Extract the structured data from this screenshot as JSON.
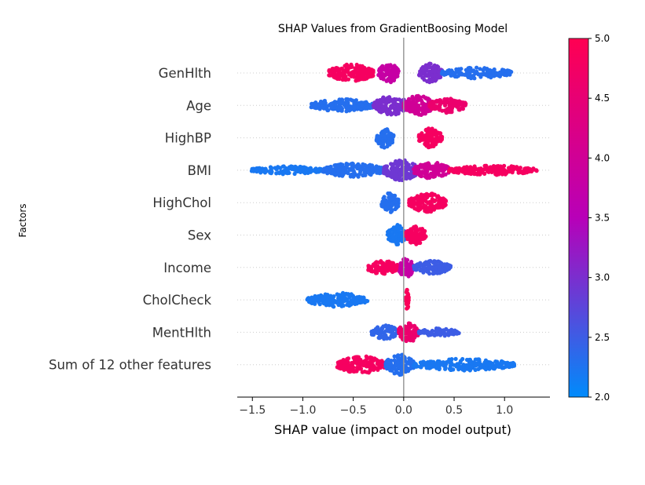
{
  "chart_data": {
    "type": "scatter",
    "subtype": "shap-beeswarm",
    "title": "SHAP Values from GradientBoosing Model",
    "xlabel": "SHAP value (impact on model output)",
    "ylabel": "Factors",
    "xlim": [
      -1.65,
      1.45
    ],
    "xticks": [
      -1.5,
      -1.0,
      -0.5,
      0.0,
      0.5,
      1.0
    ],
    "xtick_labels": [
      "−1.5",
      "−1.0",
      "−0.5",
      "0.0",
      "0.5",
      "1.0"
    ],
    "colorbar": {
      "range": [
        2.0,
        5.0
      ],
      "ticks": [
        2.0,
        2.5,
        3.0,
        3.5,
        4.0,
        4.5,
        5.0
      ],
      "tick_labels": [
        "2.0",
        "2.5",
        "3.0",
        "3.5",
        "4.0",
        "4.5",
        "5.0"
      ],
      "color_low": "#008bfb",
      "color_mid": "#b800b8",
      "color_high": "#ff0052"
    },
    "features": [
      {
        "name": "GenHlth",
        "clusters": [
          {
            "x0": -0.74,
            "x1": -0.3,
            "density": 0.85,
            "color": 4.8
          },
          {
            "x0": -0.25,
            "x1": -0.05,
            "density": 1.0,
            "color": 3.8
          },
          {
            "x0": 0.15,
            "x1": 0.38,
            "density": 0.9,
            "color": 3.0
          },
          {
            "x0": 0.38,
            "x1": 1.08,
            "density": 0.4,
            "color": 2.3
          }
        ]
      },
      {
        "name": "Age",
        "clusters": [
          {
            "x0": -0.92,
            "x1": -0.3,
            "density": 0.5,
            "color": 2.3
          },
          {
            "x0": -0.3,
            "x1": 0.05,
            "density": 0.95,
            "color": 3.0
          },
          {
            "x0": 0.0,
            "x1": 0.3,
            "density": 1.0,
            "color": 4.0
          },
          {
            "x0": 0.25,
            "x1": 0.62,
            "density": 0.65,
            "color": 4.6
          }
        ]
      },
      {
        "name": "HighBP",
        "clusters": [
          {
            "x0": -0.27,
            "x1": -0.1,
            "density": 1.0,
            "color": 2.3
          },
          {
            "x0": 0.15,
            "x1": 0.38,
            "density": 0.95,
            "color": 4.8
          }
        ]
      },
      {
        "name": "BMI",
        "clusters": [
          {
            "x0": -1.52,
            "x1": -0.8,
            "density": 0.2,
            "color": 2.2
          },
          {
            "x0": -0.8,
            "x1": -0.2,
            "density": 0.6,
            "color": 2.3
          },
          {
            "x0": -0.2,
            "x1": 0.15,
            "density": 1.0,
            "color": 2.9
          },
          {
            "x0": 0.1,
            "x1": 0.45,
            "density": 0.8,
            "color": 4.0
          },
          {
            "x0": 0.45,
            "x1": 1.32,
            "density": 0.3,
            "color": 4.8
          }
        ]
      },
      {
        "name": "HighChol",
        "clusters": [
          {
            "x0": -0.22,
            "x1": -0.05,
            "density": 1.0,
            "color": 2.3
          },
          {
            "x0": 0.05,
            "x1": 0.42,
            "density": 0.9,
            "color": 4.8
          }
        ]
      },
      {
        "name": "Sex",
        "clusters": [
          {
            "x0": -0.16,
            "x1": 0.02,
            "density": 1.0,
            "color": 2.2
          },
          {
            "x0": 0.02,
            "x1": 0.22,
            "density": 0.9,
            "color": 4.8
          }
        ]
      },
      {
        "name": "Income",
        "clusters": [
          {
            "x0": -0.36,
            "x1": -0.05,
            "density": 0.6,
            "color": 4.8
          },
          {
            "x0": -0.05,
            "x1": 0.1,
            "density": 1.0,
            "color": 3.8
          },
          {
            "x0": 0.1,
            "x1": 0.47,
            "density": 0.55,
            "color": 2.5
          }
        ]
      },
      {
        "name": "CholCheck",
        "clusters": [
          {
            "x0": -0.96,
            "x1": -0.36,
            "density": 0.6,
            "color": 2.2
          },
          {
            "x0": 0.02,
            "x1": 0.05,
            "density": 1.0,
            "color": 4.9
          }
        ]
      },
      {
        "name": "MentHlth",
        "clusters": [
          {
            "x0": -0.32,
            "x1": -0.05,
            "density": 0.6,
            "color": 2.4
          },
          {
            "x0": -0.05,
            "x1": 0.15,
            "density": 1.0,
            "color": 4.6
          },
          {
            "x0": 0.15,
            "x1": 0.55,
            "density": 0.2,
            "color": 2.5
          }
        ]
      },
      {
        "name": "Sum of 12 other features",
        "clusters": [
          {
            "x0": -0.66,
            "x1": -0.18,
            "density": 0.8,
            "color": 4.8
          },
          {
            "x0": -0.18,
            "x1": 0.1,
            "density": 1.0,
            "color": 2.3
          },
          {
            "x0": 0.1,
            "x1": 1.1,
            "density": 0.45,
            "color": 2.2
          }
        ]
      }
    ]
  }
}
